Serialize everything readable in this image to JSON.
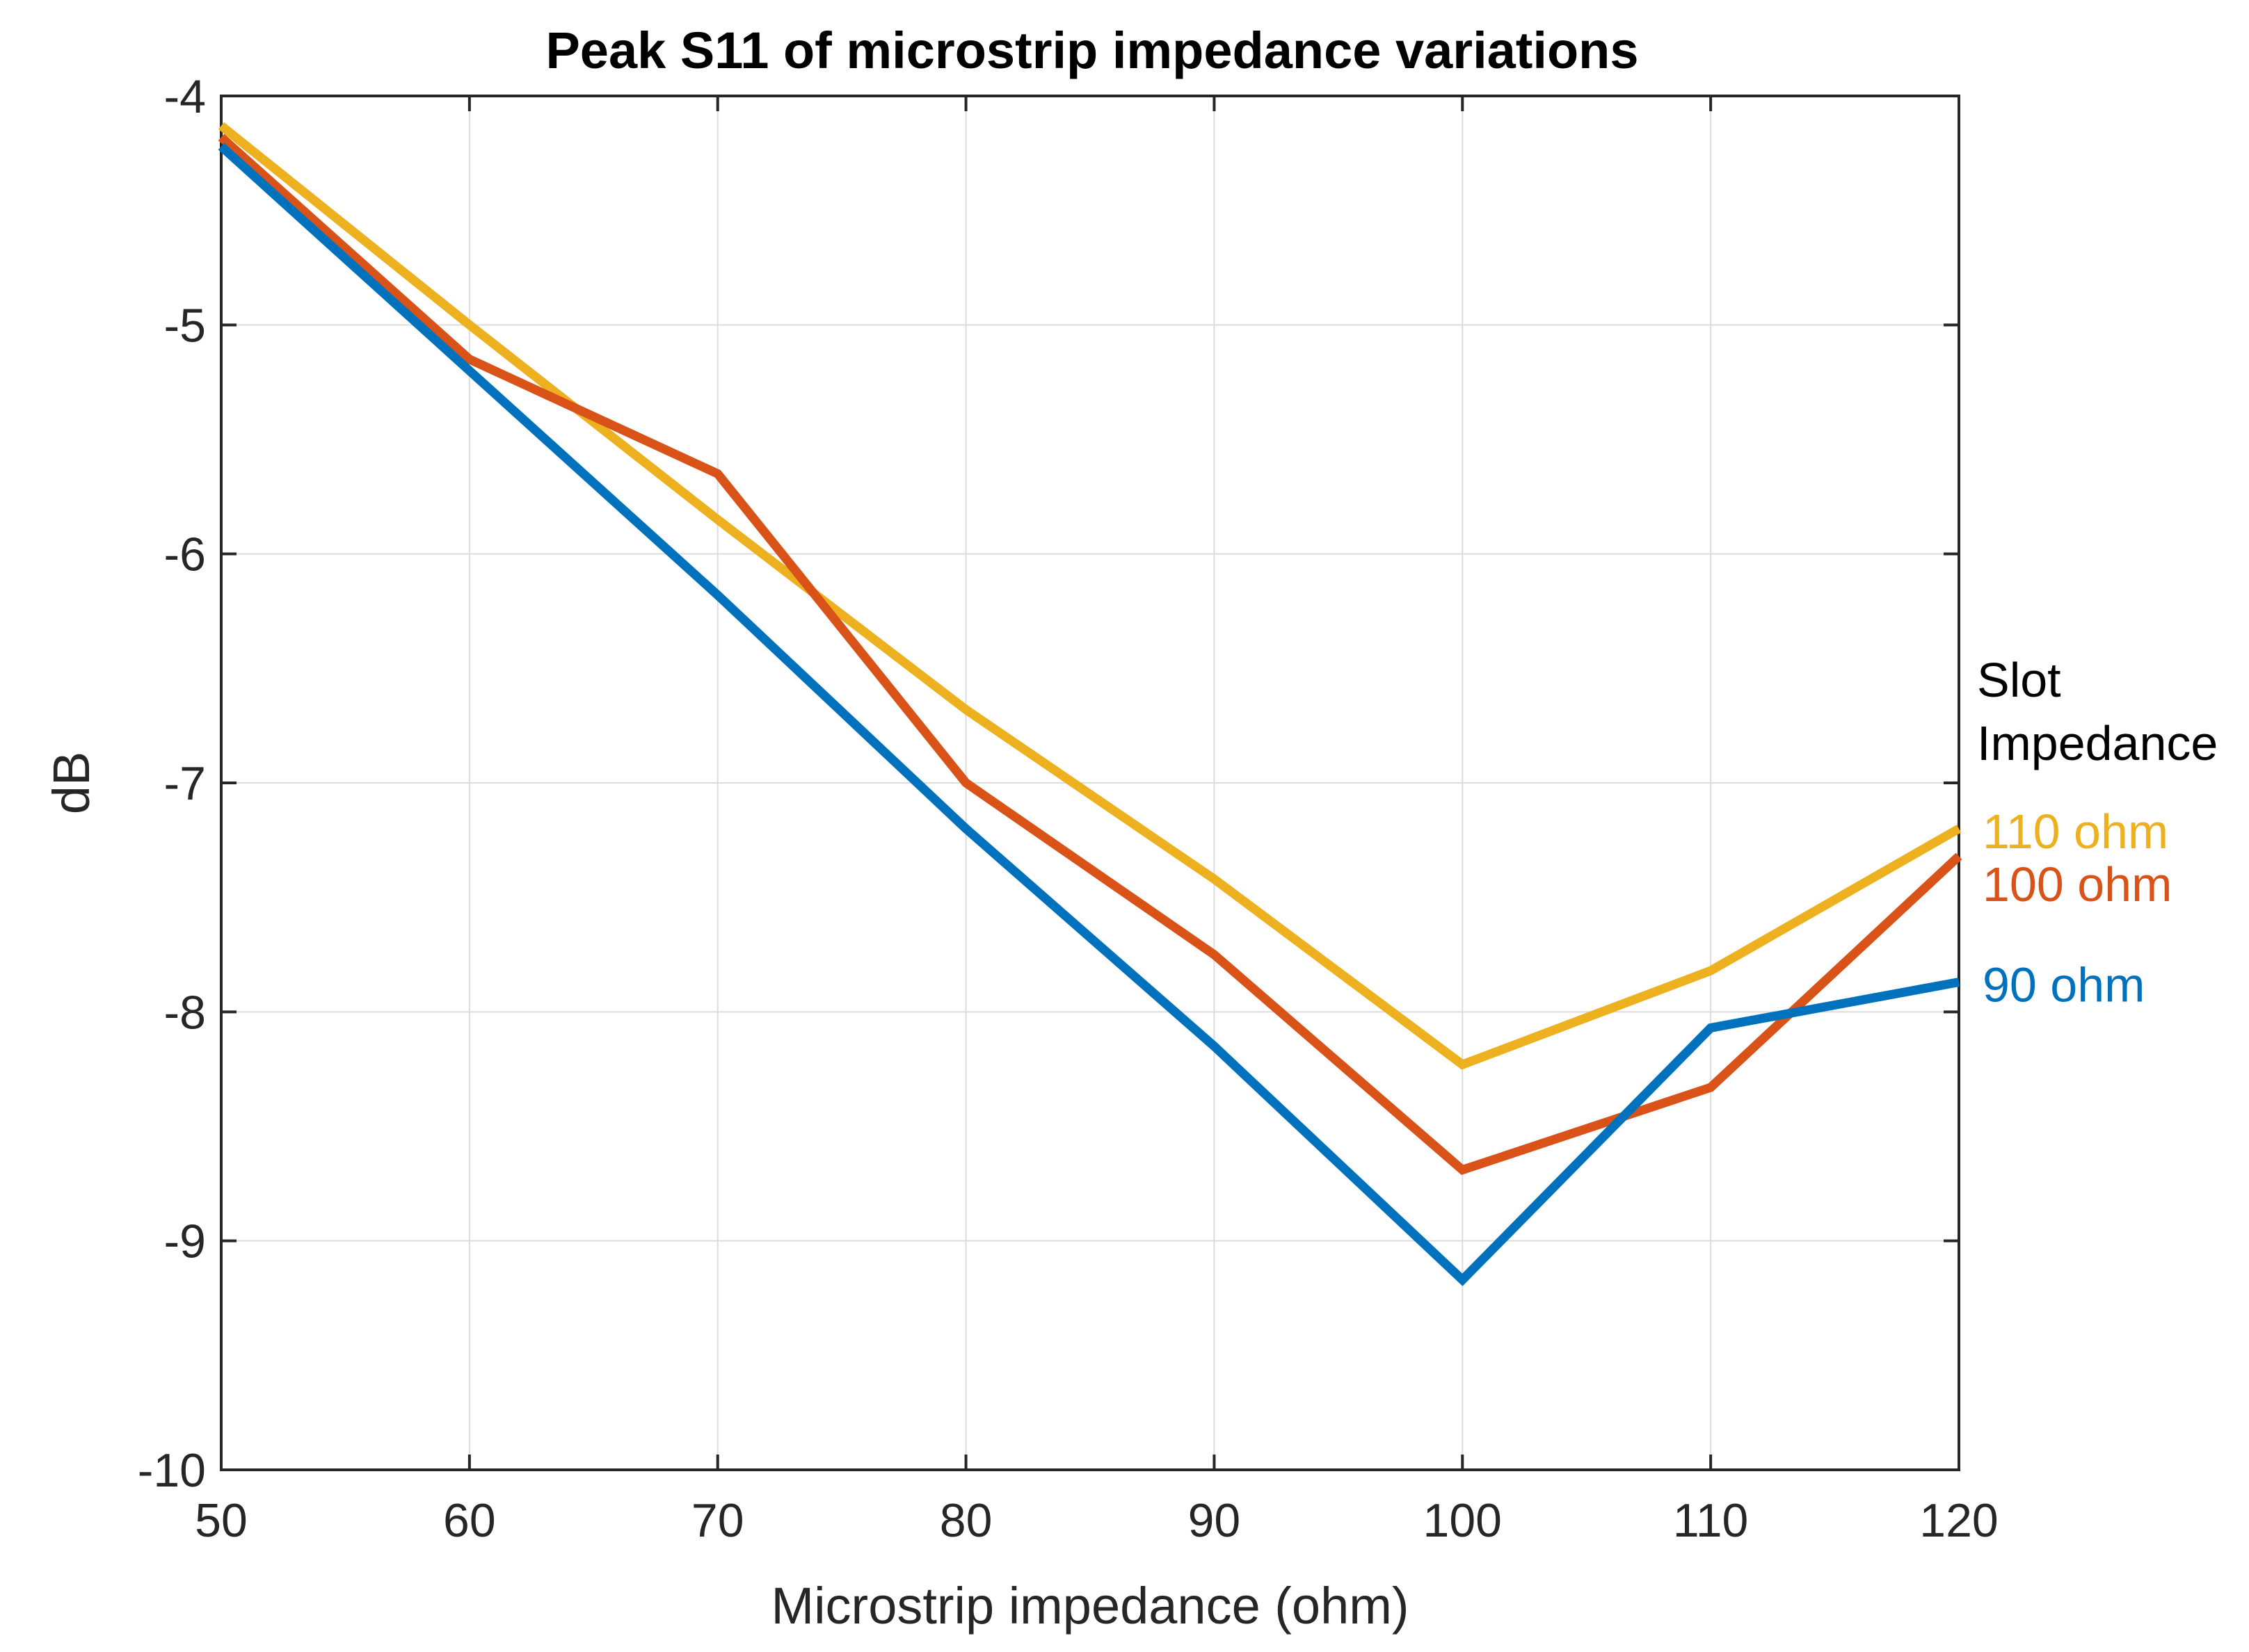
{
  "chart_data": {
    "type": "line",
    "title": "Peak S11 of microstrip impedance variations",
    "xlabel": "Microstrip impedance (ohm)",
    "ylabel": "dB",
    "xlim": [
      50,
      120
    ],
    "ylim": [
      -10,
      -4
    ],
    "xticks": [
      50,
      60,
      70,
      80,
      90,
      100,
      110,
      120
    ],
    "yticks": [
      -4,
      -5,
      -6,
      -7,
      -8,
      -9,
      -10
    ],
    "grid": true,
    "x": [
      50,
      60,
      70,
      80,
      90,
      100,
      110,
      120
    ],
    "series": [
      {
        "name": "110 ohm",
        "color": "#EDB120",
        "values": [
          -4.13,
          -5.0,
          -5.85,
          -6.68,
          -7.42,
          -8.23,
          -7.82,
          -7.2
        ]
      },
      {
        "name": "100 ohm",
        "color": "#D95319",
        "values": [
          -4.18,
          -5.15,
          -5.65,
          -7.0,
          -7.75,
          -8.69,
          -8.33,
          -7.32
        ]
      },
      {
        "name": "90 ohm",
        "color": "#0072BD",
        "values": [
          -4.22,
          -5.2,
          -6.18,
          -7.2,
          -8.15,
          -9.17,
          -8.07,
          -7.87
        ]
      }
    ],
    "legend": {
      "title_line1": "Slot",
      "title_line2": "Impedance",
      "placement": "right-inline"
    }
  }
}
